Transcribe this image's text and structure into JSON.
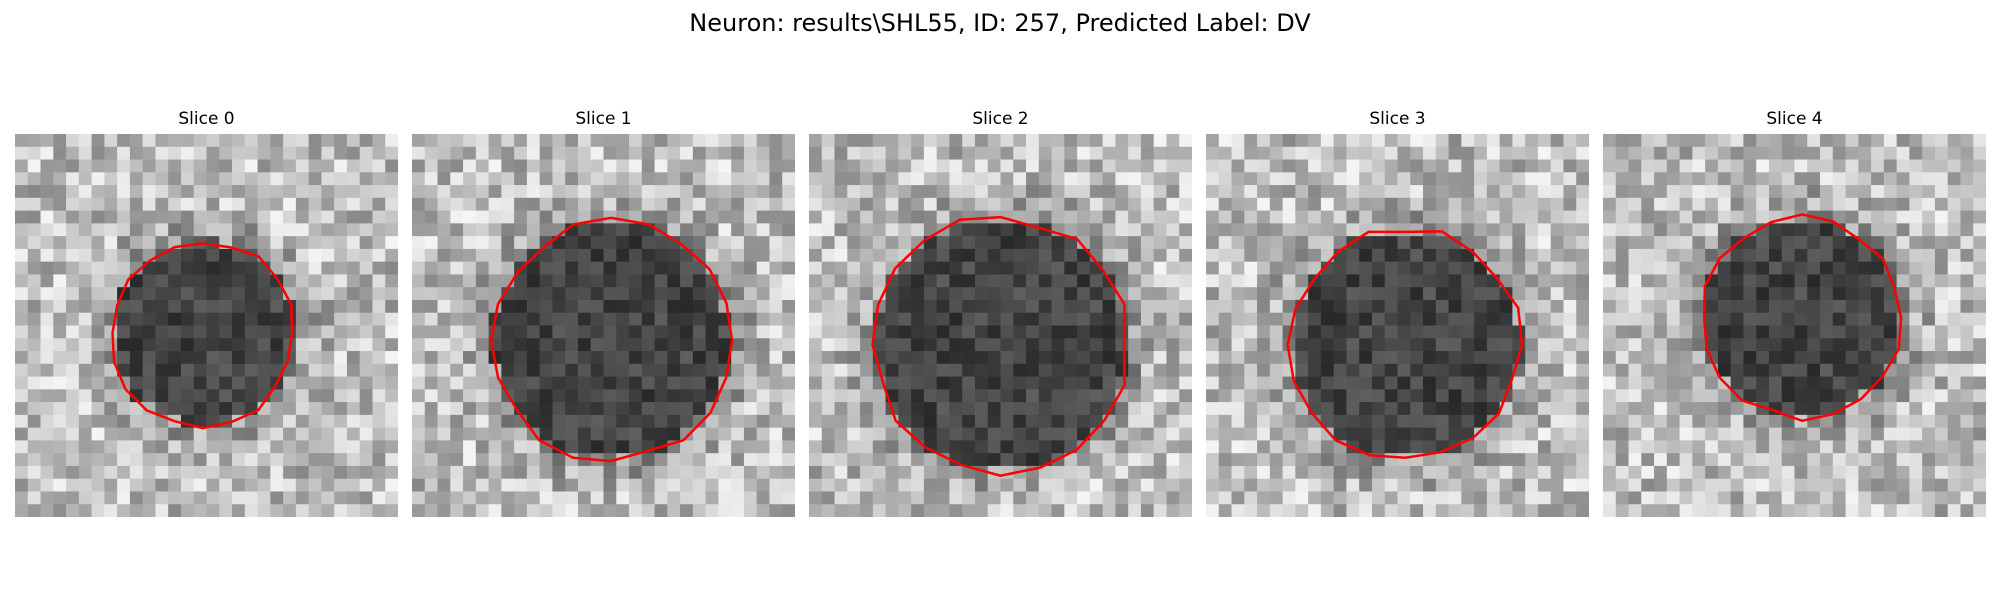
{
  "figure": {
    "suptitle": "Neuron: results\\SHL55, ID: 257, Predicted Label: DV",
    "contour_color": "#ff0000",
    "colormap": "gray"
  },
  "panels": [
    {
      "title": "Slice 0",
      "center": [
        0.49,
        0.52
      ],
      "radius": 0.24,
      "seed": 11
    },
    {
      "title": "Slice 1",
      "center": [
        0.52,
        0.54
      ],
      "radius": 0.31,
      "seed": 23
    },
    {
      "title": "Slice 2",
      "center": [
        0.5,
        0.55
      ],
      "radius": 0.33,
      "seed": 37
    },
    {
      "title": "Slice 3",
      "center": [
        0.52,
        0.55
      ],
      "radius": 0.3,
      "seed": 41
    },
    {
      "title": "Slice 4",
      "center": [
        0.52,
        0.48
      ],
      "radius": 0.26,
      "seed": 53
    }
  ]
}
